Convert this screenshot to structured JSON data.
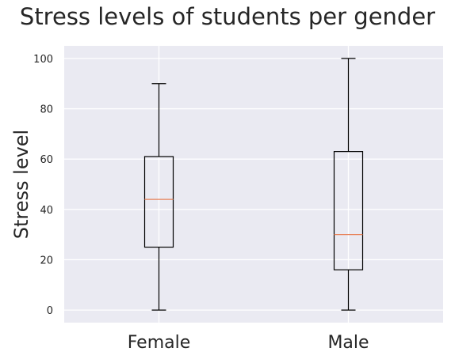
{
  "chart_data": {
    "type": "boxplot",
    "title": "Stress levels of students per gender",
    "xlabel": "",
    "ylabel": "Stress level",
    "categories": [
      "Female",
      "Male"
    ],
    "boxes": [
      {
        "name": "Female",
        "min": 0,
        "q1": 25,
        "median": 44,
        "q3": 61,
        "max": 90
      },
      {
        "name": "Male",
        "min": 0,
        "q1": 16,
        "median": 30,
        "q3": 63,
        "max": 100
      }
    ],
    "ylim": [
      -5,
      105
    ],
    "yticks": [
      0,
      20,
      40,
      60,
      80,
      100
    ],
    "grid": true,
    "colors": {
      "background": "#eaeaf2",
      "grid": "#ffffff",
      "box": "#000000",
      "median": "#e8835a",
      "text": "#262626"
    }
  }
}
